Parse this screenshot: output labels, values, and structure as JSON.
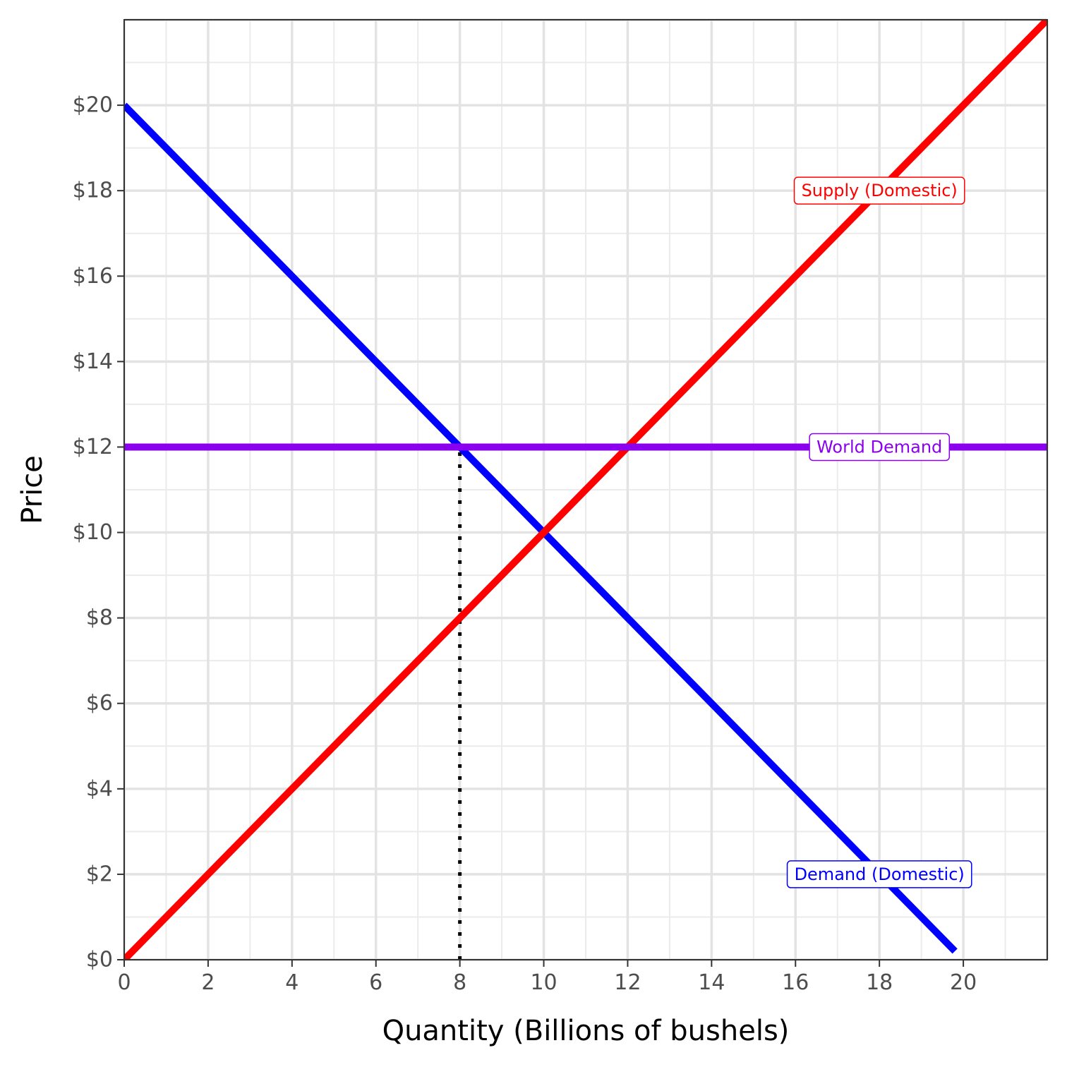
{
  "chart_data": {
    "type": "line",
    "xlabel": "Quantity (Billions of bushels)",
    "ylabel": "Price",
    "xlim": [
      0,
      22
    ],
    "ylim": [
      0,
      22
    ],
    "x_ticks": [
      0,
      2,
      4,
      6,
      8,
      10,
      12,
      14,
      16,
      18,
      20
    ],
    "x_tick_labels": [
      "0",
      "2",
      "4",
      "6",
      "8",
      "10",
      "12",
      "14",
      "16",
      "18",
      "20"
    ],
    "y_ticks": [
      0,
      2,
      4,
      6,
      8,
      10,
      12,
      14,
      16,
      18,
      20
    ],
    "y_tick_labels": [
      "$0",
      "$2",
      "$4",
      "$6",
      "$8",
      "$10",
      "$12",
      "$14",
      "$16",
      "$18",
      "$20"
    ],
    "grid": true,
    "series": [
      {
        "name": "Demand (Domestic)",
        "color": "#0000ff",
        "x": [
          0,
          19.8
        ],
        "y": [
          20,
          0.2
        ]
      },
      {
        "name": "Supply (Domestic)",
        "color": "#ff0000",
        "x": [
          0,
          22
        ],
        "y": [
          0,
          22
        ]
      },
      {
        "name": "World Demand",
        "color": "#8b00ee",
        "x": [
          0,
          22
        ],
        "y": [
          12,
          12
        ]
      }
    ],
    "reference_lines": [
      {
        "style": "dotted",
        "color": "#000000",
        "x": [
          8,
          8
        ],
        "y": [
          0,
          12
        ]
      }
    ],
    "annotations": [
      {
        "text": "Supply (Domestic)",
        "x": 18,
        "y": 18,
        "color": "#ff0000"
      },
      {
        "text": "World Demand",
        "x": 18,
        "y": 12,
        "color": "#8b00ee"
      },
      {
        "text": "Demand (Domestic)",
        "x": 18,
        "y": 2,
        "color": "#0000ff"
      }
    ]
  }
}
